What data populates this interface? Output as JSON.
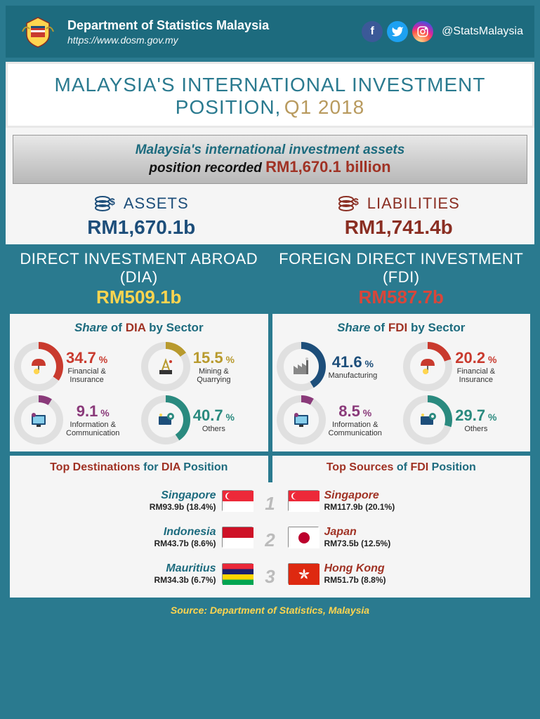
{
  "header": {
    "department": "Department of Statistics Malaysia",
    "url": "https://www.dosm.gov.my",
    "handle": "@StatsMalaysia",
    "social_colors": {
      "fb": "#3b5998",
      "tw": "#1da1f2",
      "ig_a": "#fdf497",
      "ig_b": "#fd5949",
      "ig_c": "#285aeb"
    }
  },
  "title": {
    "main": "MALAYSIA'S  INTERNATIONAL  INVESTMENT  POSITION,",
    "period": "Q1 2018"
  },
  "sub_banner": {
    "line1": "Malaysia's international investment assets",
    "line2_pre": "position recorded ",
    "value": "RM1,670.1 billion"
  },
  "assets": {
    "label": "ASSETS",
    "value": "RM1,670.1b",
    "color": "#1d4e7a"
  },
  "liabilities": {
    "label": "LIABILITIES",
    "value": "RM1,741.4b",
    "color": "#8a2e22"
  },
  "dia": {
    "title": "DIRECT INVESTMENT ABROAD (DIA)",
    "value": "RM509.1b",
    "share_title_pre": "Share ",
    "share_title_mid": "of ",
    "share_title_accent": "DIA",
    "share_title_post": " by Sector",
    "sectors": [
      {
        "pct": 34.7,
        "label": "Financial & Insurance",
        "color": "#c93a2e",
        "icon": "umbrella"
      },
      {
        "pct": 15.5,
        "label": "Mining & Quarrying",
        "color": "#b89a2e",
        "icon": "rig"
      },
      {
        "pct": 9.1,
        "label": "Information & Communication",
        "color": "#8a3a7a",
        "icon": "monitor"
      },
      {
        "pct": 40.7,
        "label": "Others",
        "color": "#2a8a7f",
        "icon": "gear"
      }
    ]
  },
  "fdi": {
    "title": "FOREIGN DIRECT INVESTMENT (FDI)",
    "value": "RM587.7b",
    "share_title_pre": "Share ",
    "share_title_mid": "of ",
    "share_title_accent": "FDI",
    "share_title_post": " by Sector",
    "sectors": [
      {
        "pct": 41.6,
        "label": "Manufacturing",
        "color": "#1d4e7a",
        "icon": "factory"
      },
      {
        "pct": 20.2,
        "label": "Financial & Insurance",
        "color": "#c93a2e",
        "icon": "umbrella"
      },
      {
        "pct": 8.5,
        "label": "Information & Communication",
        "color": "#8a3a7a",
        "icon": "monitor"
      },
      {
        "pct": 29.7,
        "label": "Others",
        "color": "#2a8a7f",
        "icon": "gear"
      }
    ]
  },
  "top_dia": {
    "title_pre": "Top ",
    "title_accent": "Destinations",
    "title_post": " for ",
    "title_b": "DIA",
    "title_end": " Position",
    "items": [
      {
        "name": "Singapore",
        "value": "RM93.9b (18.4%)",
        "flag": "sg"
      },
      {
        "name": "Indonesia",
        "value": "RM43.7b (8.6%)",
        "flag": "id"
      },
      {
        "name": "Mauritius",
        "value": "RM34.3b (6.7%)",
        "flag": "mu"
      }
    ]
  },
  "top_fdi": {
    "title_pre": "Top ",
    "title_accent": "Sources",
    "title_post": " of ",
    "title_b": "FDI",
    "title_end": " Position",
    "items": [
      {
        "name": "Singapore",
        "value": "RM117.9b (20.1%)",
        "flag": "sg"
      },
      {
        "name": "Japan",
        "value": "RM73.5b (12.5%)",
        "flag": "jp"
      },
      {
        "name": "Hong Kong",
        "value": "RM51.7b (8.8%)",
        "flag": "hk"
      }
    ]
  },
  "ranks": [
    "1",
    "2",
    "3"
  ],
  "footer": "Source: Department of Statistics, Malaysia",
  "flags": {
    "sg": {
      "top": "#ed2939",
      "bot": "#ffffff"
    },
    "id": {
      "top": "#ce1126",
      "bot": "#ffffff"
    },
    "mu": {
      "c1": "#ea2839",
      "c2": "#1a206d",
      "c3": "#ffd500",
      "c4": "#00a551"
    },
    "jp": {
      "bg": "#ffffff",
      "dot": "#bc002d"
    },
    "hk": {
      "bg": "#de2910"
    }
  },
  "donut_track": "#e0e0e0"
}
